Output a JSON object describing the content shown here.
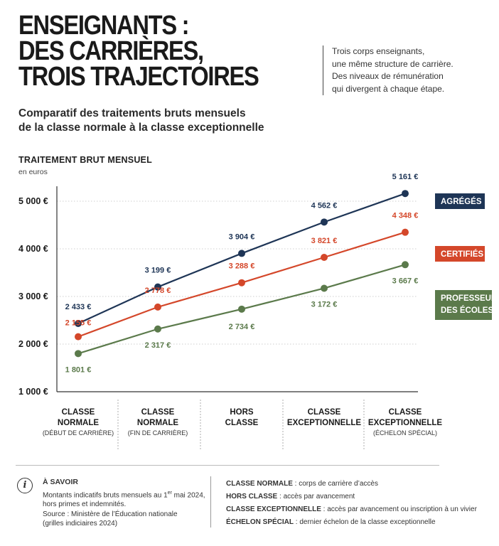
{
  "title_lines": [
    "ENSEIGNANTS :",
    "DES CARRIÈRES,",
    "TROIS TRAJECTOIRES"
  ],
  "side_note": [
    "Trois corps enseignants,",
    "une même structure de carrière.",
    "Des niveaux de rémunération",
    "qui divergent à chaque étape."
  ],
  "subtitle_lines": [
    "Comparatif des traitements bruts mensuels",
    "de la classe normale à la classe exceptionnelle"
  ],
  "chart_data": {
    "type": "line",
    "ylabel": "TRAITEMENT BRUT MENSUEL",
    "yunit": "en euros",
    "ylim": [
      1000,
      5500
    ],
    "yticks": [
      1000,
      2000,
      3000,
      4000,
      5000
    ],
    "ytick_labels": [
      "1 000 €",
      "2 000 €",
      "3 000 €",
      "4 000 €",
      "5 000 €"
    ],
    "grid": true,
    "legend_placement": "right",
    "categories": [
      {
        "lines": [
          "CLASSE",
          "NORMALE"
        ],
        "sub": "(DÉBUT DE CARRIÈRE)"
      },
      {
        "lines": [
          "CLASSE",
          "NORMALE"
        ],
        "sub": "(FIN DE CARRIÈRE)"
      },
      {
        "lines": [
          "HORS",
          "CLASSE"
        ],
        "sub": ""
      },
      {
        "lines": [
          "CLASSE",
          "EXCEPTIONNELLE"
        ],
        "sub": ""
      },
      {
        "lines": [
          "CLASSE",
          "EXCEPTIONNELLE"
        ],
        "sub": "(ÉCHELON SPÉCIAL)"
      }
    ],
    "series": [
      {
        "name": "AGRÉGÉS",
        "color": "#1e3556",
        "values": [
          2433,
          3199,
          3904,
          4562,
          5161
        ],
        "labels": [
          "2 433 €",
          "3 199 €",
          "3 904 €",
          "4 562 €",
          "5 161 €"
        ]
      },
      {
        "name": "CERTIFIÉS",
        "color": "#d4472a",
        "values": [
          2155,
          2778,
          3288,
          3821,
          4348
        ],
        "labels": [
          "2 155 €",
          "2 778 €",
          "3 288 €",
          "3 821 €",
          "4 348 €"
        ]
      },
      {
        "name": "PROFESSEURS DES ÉCOLES",
        "color": "#5b7a4b",
        "values": [
          1801,
          2317,
          2734,
          3172,
          3667
        ],
        "labels": [
          "1 801 €",
          "2 317 €",
          "2 734 €",
          "3 172 €",
          "3 667 €"
        ]
      }
    ]
  },
  "footer": {
    "savoir_title": "À SAVOIR",
    "savoir_l1a": "Montants indicatifs bruts mensuels au 1",
    "savoir_l1sup": "er",
    "savoir_l1b": " mai 2024,",
    "savoir_l2": "hors primes et indemnités.",
    "savoir_l3": "Source : Ministère de l’Éducation nationale",
    "savoir_l4": "(grilles indiciaires 2024)",
    "definitions": [
      {
        "term": "CLASSE NORMALE",
        "text": " : corps de carrière d’accès"
      },
      {
        "term": "HORS CLASSE",
        "text": " : accès par avancement"
      },
      {
        "term": "CLASSE EXCEPTIONNELLE",
        "text": " : accès par avancement ou inscription à un vivier"
      },
      {
        "term": "ÉCHELON SPÉCIAL",
        "text": " :  dernier échelon de la classe exceptionnelle"
      }
    ]
  }
}
